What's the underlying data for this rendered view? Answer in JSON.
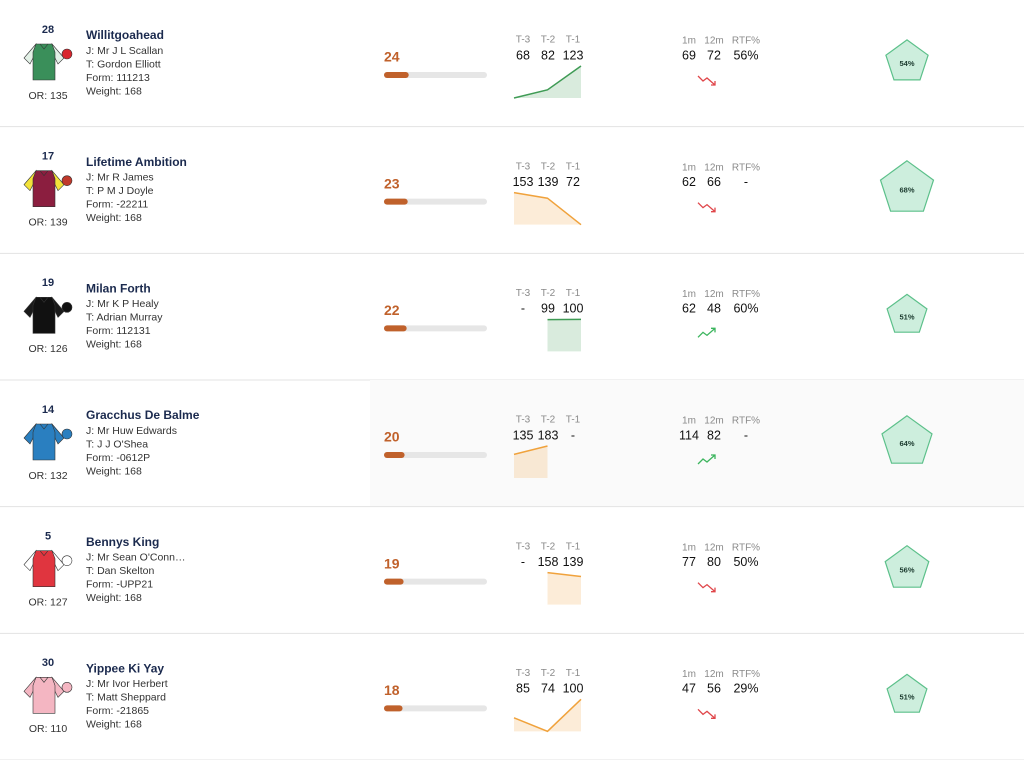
{
  "columns": {
    "form_figs": [
      "T-3",
      "T-2",
      "T-1"
    ],
    "stats": [
      "1m",
      "12m",
      "RTF%"
    ]
  },
  "runners": [
    {
      "number": 28,
      "name": "Willitgoahead",
      "jockey": "J: Mr J L Scallan",
      "trainer": "T: Gordon Elliott",
      "form": "Form: 111213",
      "weight": "Weight: 168",
      "or": "OR: 135",
      "score": 24,
      "figs": [
        68,
        82,
        123
      ],
      "spark_color": "#3f9b55",
      "stats": [
        69,
        72,
        "56%"
      ],
      "trend": "down",
      "radar": {
        "value": 54,
        "label": "54%"
      },
      "silk": {
        "body": "#3a8f5a",
        "sleeves": "#e3f1e7",
        "cap": "#d9262e"
      }
    },
    {
      "number": 17,
      "name": "Lifetime Ambition",
      "jockey": "J: Mr R James",
      "trainer": "T: P M J Doyle",
      "form": "Form: -22211",
      "weight": "Weight: 168",
      "or": "OR: 139",
      "score": 23,
      "figs": [
        153,
        139,
        72
      ],
      "spark_color": "#f0a23c",
      "stats": [
        62,
        66,
        "-"
      ],
      "trend": "down",
      "radar": {
        "value": 68,
        "label": "68%"
      },
      "silk": {
        "body": "#8b1e3f",
        "sleeves": "#f2e23a",
        "cap": "#c0392b"
      }
    },
    {
      "number": 19,
      "name": "Milan Forth",
      "jockey": "J: Mr K P Healy",
      "trainer": "T: Adrian Murray",
      "form": "Form: 112131",
      "weight": "Weight: 168",
      "or": "OR: 126",
      "score": 22,
      "figs": [
        "-",
        99,
        100
      ],
      "spark_color": "#3f9b55",
      "stats": [
        62,
        48,
        "60%"
      ],
      "trend": "up",
      "radar": {
        "value": 51,
        "label": "51%"
      },
      "silk": {
        "body": "#111111",
        "sleeves": "#1a1a1a",
        "cap": "#111111"
      }
    },
    {
      "number": 14,
      "name": "Gracchus De Balme",
      "jockey": "J: Mr Huw Edwards",
      "trainer": "T: J J O'Shea",
      "form": "Form: -0612P",
      "weight": "Weight: 168",
      "or": "OR: 132",
      "score": 20,
      "figs": [
        135,
        183,
        "-"
      ],
      "spark_color": "#f0a23c",
      "stats": [
        114,
        82,
        "-"
      ],
      "trend": "up",
      "radar": {
        "value": 64,
        "label": "64%"
      },
      "silk": {
        "body": "#2a7fc0",
        "sleeves": "#2a7fc0",
        "cap": "#2a7fc0"
      }
    },
    {
      "number": 5,
      "name": "Bennys King",
      "jockey": "J: Mr Sean O'Conn…",
      "trainer": "T: Dan Skelton",
      "form": "Form: -UPP21",
      "weight": "Weight: 168",
      "or": "OR: 127",
      "score": 19,
      "figs": [
        "-",
        158,
        139
      ],
      "spark_color": "#f0a23c",
      "stats": [
        77,
        80,
        "50%"
      ],
      "trend": "down",
      "radar": {
        "value": 56,
        "label": "56%"
      },
      "silk": {
        "body": "#e0353f",
        "sleeves": "#ffffff",
        "cap": "#ffffff"
      }
    },
    {
      "number": 30,
      "name": "Yippee Ki Yay",
      "jockey": "J: Mr Ivor Herbert",
      "trainer": "T: Matt Sheppard",
      "form": "Form: -21865",
      "weight": "Weight: 168",
      "or": "OR: 110",
      "score": 18,
      "figs": [
        85,
        74,
        100
      ],
      "spark_color": "#f0a23c",
      "stats": [
        47,
        56,
        "29%"
      ],
      "trend": "down",
      "radar": {
        "value": 51,
        "label": "51%"
      },
      "silk": {
        "body": "#f4b6c2",
        "sleeves": "#f4b6c2",
        "cap": "#f4b6c2"
      }
    }
  ]
}
